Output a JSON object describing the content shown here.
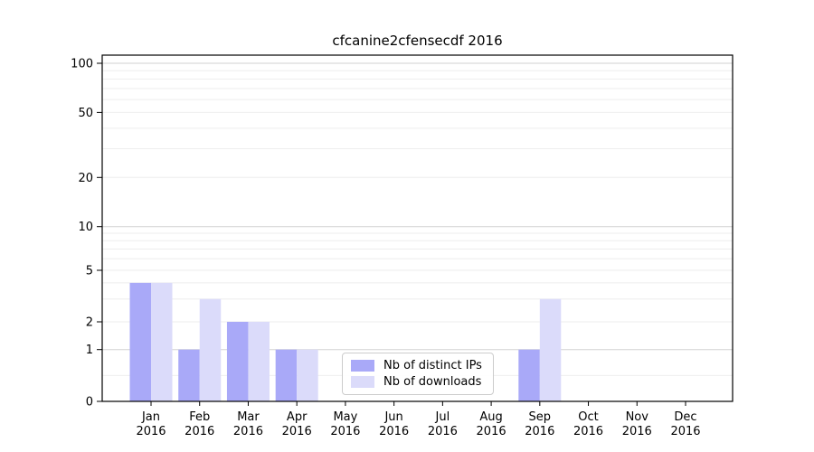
{
  "figure": {
    "title": "cfcanine2cfensecdf 2016"
  },
  "chart_data": {
    "type": "bar",
    "title": "cfcanine2cfensecdf 2016",
    "xlabel": "",
    "ylabel": "",
    "yscale": "symlog",
    "ylim": [
      0,
      112
    ],
    "grid": true,
    "x_year": "2016",
    "categories": [
      "Jan",
      "Feb",
      "Mar",
      "Apr",
      "May",
      "Jun",
      "Jul",
      "Aug",
      "Sep",
      "Oct",
      "Nov",
      "Dec"
    ],
    "series": [
      {
        "key": "distinct-ips",
        "name": "Nb of distinct IPs",
        "color": "#a9a9f8",
        "values": [
          4,
          1,
          2,
          1,
          0,
          0,
          0,
          0,
          1,
          0,
          0,
          0
        ]
      },
      {
        "key": "downloads",
        "name": "Nb of downloads",
        "color": "#dbdbfa",
        "values": [
          4,
          3,
          2,
          1,
          0,
          0,
          0,
          0,
          3,
          0,
          0,
          0
        ]
      }
    ],
    "y_tick_labels": [
      0,
      1,
      2,
      5,
      10,
      20,
      50,
      100
    ],
    "y_gridlines_major": [
      1,
      10,
      100
    ],
    "y_gridlines_minor": [
      0.5,
      2,
      3,
      4,
      5,
      6,
      7,
      8,
      9,
      20,
      30,
      40,
      50,
      60,
      70,
      80,
      90
    ],
    "legend": {
      "position": "lower center",
      "entries": [
        "Nb of distinct IPs",
        "Nb of downloads"
      ]
    }
  }
}
